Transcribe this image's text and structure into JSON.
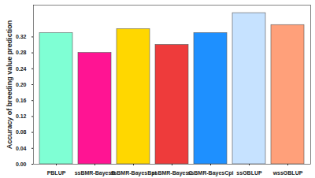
{
  "chart_data": {
    "type": "bar",
    "y_label": "Accuracy of breeding value prediction",
    "categories": [
      "PBLUP",
      "ssBMR-BayesB",
      "ssBMR-BayesBpi",
      "ssBMR-BayesC",
      "ssBMR-BayesCpi",
      "ssGBLUP",
      "wssGBLUP"
    ],
    "values": [
      0.33,
      0.28,
      0.34,
      0.3,
      0.33,
      0.38,
      0.35
    ],
    "colors": [
      "#7FFFD4",
      "#FF1493",
      "#FFD700",
      "#EE3B3B",
      "#1E90FF",
      "#C6E2FF",
      "#FFA07A"
    ],
    "ylim": [
      0,
      0.4
    ],
    "yticks": [
      {
        "value": 0,
        "label": "0.00"
      },
      {
        "value": 0.04,
        "label": "0.04"
      },
      {
        "value": 0.08,
        "label": "0.08"
      },
      {
        "value": 0.12,
        "label": "0.12"
      },
      {
        "value": 0.16,
        "label": "0.16"
      },
      {
        "value": 0.2,
        "label": "0.20"
      },
      {
        "value": 0.24,
        "label": "0.24"
      },
      {
        "value": 0.28,
        "label": "0.28"
      },
      {
        "value": 0.32,
        "label": "0.32"
      }
    ],
    "grid": false
  }
}
